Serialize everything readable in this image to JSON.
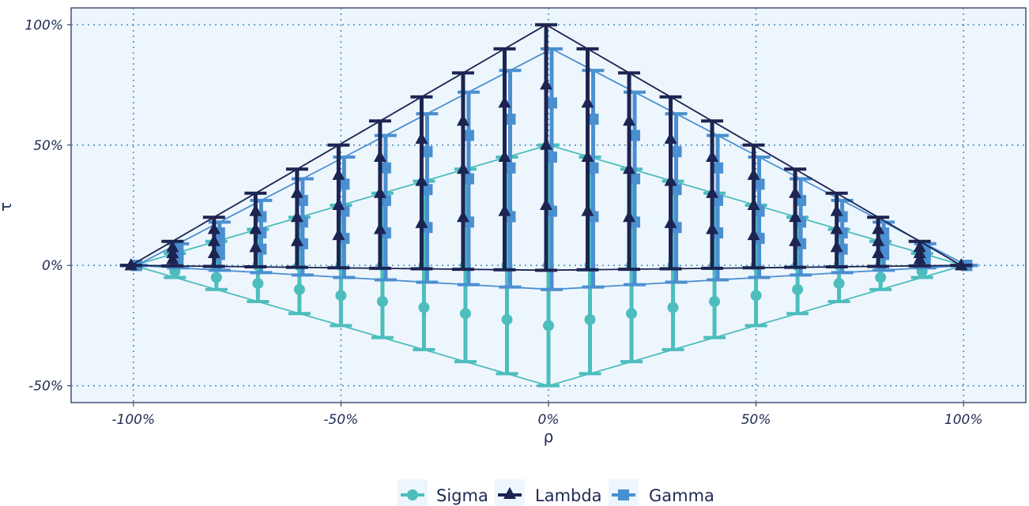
{
  "chart_data": {
    "type": "line",
    "xlabel": "ρ",
    "ylabel": "τ",
    "xlim": [
      -1.15,
      1.15
    ],
    "ylim": [
      -0.57,
      1.07
    ],
    "x_ticks": [
      -1,
      -0.5,
      0,
      0.5,
      1
    ],
    "x_tick_labels": [
      "-100%",
      "-50%",
      "0%",
      "50%",
      "100%"
    ],
    "y_ticks": [
      -0.5,
      0,
      0.5,
      1
    ],
    "y_tick_labels": [
      "-50%",
      "0%",
      "50%",
      "100%"
    ],
    "grid": true,
    "legend_position": "bottom",
    "x": [
      -1,
      -0.9,
      -0.8,
      -0.7,
      -0.6,
      -0.5,
      -0.4,
      -0.3,
      -0.2,
      -0.1,
      0,
      0.1,
      0.2,
      0.3,
      0.4,
      0.5,
      0.6,
      0.7,
      0.8,
      0.9,
      1
    ],
    "series": [
      {
        "name": "Sigma",
        "color": "#4dbdbd",
        "marker": "circle",
        "mid": [
          0,
          0.05,
          0.1,
          0.15,
          0.2,
          0.25,
          0.3,
          0.35,
          0.4,
          0.45,
          0.5,
          0.45,
          0.4,
          0.35,
          0.3,
          0.25,
          0.2,
          0.15,
          0.1,
          0.05,
          0
        ],
        "points": [
          [
            0,
            0.025,
            0.05,
            0.075,
            0.1,
            0.125,
            0.15,
            0.175,
            0.2,
            0.225,
            0.25,
            0.225,
            0.2,
            0.175,
            0.15,
            0.125,
            0.1,
            0.075,
            0.05,
            0.025,
            0
          ],
          [
            0,
            0,
            0,
            0,
            0,
            0,
            0,
            0,
            0,
            0,
            0,
            0,
            0,
            0,
            0,
            0,
            0,
            0,
            0,
            0,
            0
          ],
          [
            0,
            -0.025,
            -0.05,
            -0.075,
            -0.1,
            -0.125,
            -0.15,
            -0.175,
            -0.2,
            -0.225,
            -0.25,
            -0.225,
            -0.2,
            -0.175,
            -0.15,
            -0.125,
            -0.1,
            -0.075,
            -0.05,
            -0.025,
            0
          ]
        ],
        "lower": [
          0,
          -0.05,
          -0.1,
          -0.15,
          -0.2,
          -0.25,
          -0.3,
          -0.35,
          -0.4,
          -0.45,
          -0.5,
          -0.45,
          -0.4,
          -0.35,
          -0.3,
          -0.25,
          -0.2,
          -0.15,
          -0.1,
          -0.05,
          0
        ]
      },
      {
        "name": "Lambda",
        "color": "#1c2452",
        "marker": "triangle",
        "upper": [
          0,
          0.1,
          0.2,
          0.3,
          0.4,
          0.5,
          0.6,
          0.7,
          0.8,
          0.9,
          1,
          0.9,
          0.8,
          0.7,
          0.6,
          0.5,
          0.4,
          0.3,
          0.2,
          0.1,
          0
        ],
        "points": [
          [
            0,
            0.075,
            0.15,
            0.225,
            0.3,
            0.375,
            0.45,
            0.525,
            0.6,
            0.675,
            0.75,
            0.675,
            0.6,
            0.525,
            0.45,
            0.375,
            0.3,
            0.225,
            0.15,
            0.075,
            0
          ],
          [
            0,
            0.05,
            0.1,
            0.15,
            0.2,
            0.25,
            0.3,
            0.35,
            0.4,
            0.45,
            0.5,
            0.45,
            0.4,
            0.35,
            0.3,
            0.25,
            0.2,
            0.15,
            0.1,
            0.05,
            0
          ],
          [
            0,
            0.025,
            0.05,
            0.075,
            0.1,
            0.125,
            0.15,
            0.175,
            0.2,
            0.225,
            0.25,
            0.225,
            0.2,
            0.175,
            0.15,
            0.125,
            0.1,
            0.075,
            0.05,
            0.025,
            0
          ]
        ],
        "lower": [
          0,
          -0.002,
          -0.004,
          -0.006,
          -0.008,
          -0.01,
          -0.012,
          -0.014,
          -0.016,
          -0.018,
          -0.02,
          -0.018,
          -0.016,
          -0.014,
          -0.012,
          -0.01,
          -0.008,
          -0.006,
          -0.004,
          -0.002,
          0
        ]
      },
      {
        "name": "Gamma",
        "color": "#4a8fd0",
        "marker": "square",
        "upper": [
          0,
          0.09,
          0.18,
          0.27,
          0.36,
          0.45,
          0.54,
          0.63,
          0.72,
          0.81,
          0.9,
          0.81,
          0.72,
          0.63,
          0.54,
          0.45,
          0.36,
          0.27,
          0.18,
          0.09,
          0
        ],
        "points": [
          [
            0,
            0.0675,
            0.135,
            0.2025,
            0.27,
            0.3375,
            0.405,
            0.4725,
            0.54,
            0.6075,
            0.675,
            0.6075,
            0.54,
            0.4725,
            0.405,
            0.3375,
            0.27,
            0.2025,
            0.135,
            0.0675,
            0
          ],
          [
            0,
            0.045,
            0.09,
            0.135,
            0.18,
            0.225,
            0.27,
            0.315,
            0.36,
            0.405,
            0.45,
            0.405,
            0.36,
            0.315,
            0.27,
            0.225,
            0.18,
            0.135,
            0.09,
            0.045,
            0
          ],
          [
            0,
            0.0225,
            0.045,
            0.0675,
            0.09,
            0.1125,
            0.135,
            0.1575,
            0.18,
            0.2025,
            0.225,
            0.2025,
            0.18,
            0.1575,
            0.135,
            0.1125,
            0.09,
            0.0675,
            0.045,
            0.0225,
            0
          ]
        ],
        "lower": [
          0,
          -0.01,
          -0.02,
          -0.03,
          -0.04,
          -0.05,
          -0.06,
          -0.07,
          -0.08,
          -0.09,
          -0.1,
          -0.09,
          -0.08,
          -0.07,
          -0.06,
          -0.05,
          -0.04,
          -0.03,
          -0.02,
          -0.01,
          0
        ]
      }
    ]
  },
  "legend": {
    "items": [
      "Sigma",
      "Lambda",
      "Gamma"
    ]
  },
  "colors": {
    "panel_background": "#eef6fd",
    "grid": "#4a90c0",
    "frame": "#1c2452",
    "text": "#1f2a55"
  }
}
